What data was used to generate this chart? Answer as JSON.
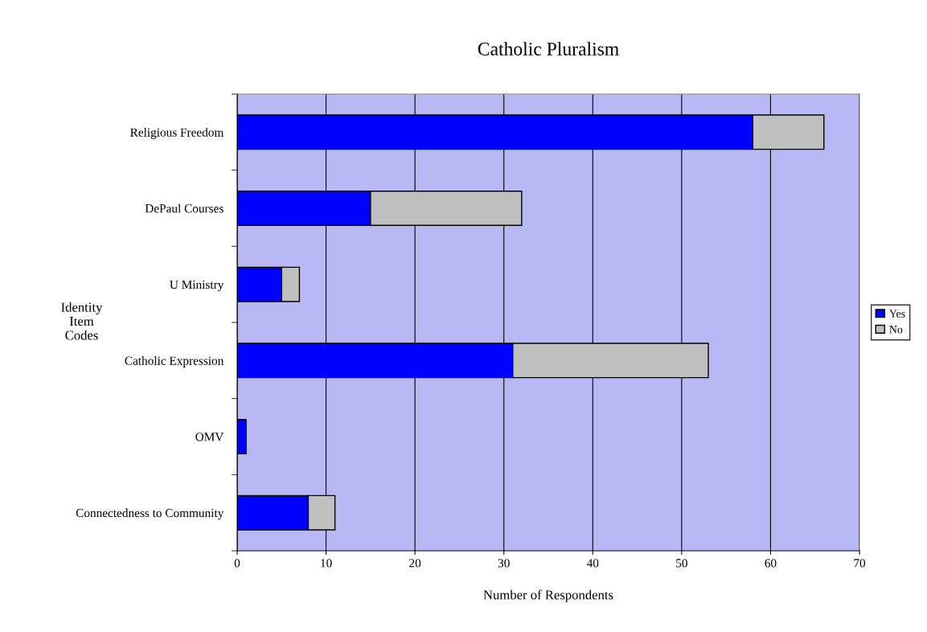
{
  "chart_data": {
    "type": "bar",
    "orientation": "horizontal",
    "stacked": true,
    "title": "Catholic Pluralism",
    "xlabel": "Number of Respondents",
    "ylabel": "Identity\nItem\nCodes",
    "categories": [
      "Religious Freedom",
      "DePaul Courses",
      "U Ministry",
      "Catholic Expression",
      "OMV",
      "Connectedness to Community"
    ],
    "series": [
      {
        "name": "Yes",
        "color": "#0000ff",
        "values": [
          58,
          15,
          5,
          31,
          1,
          8
        ]
      },
      {
        "name": "No",
        "color": "#c0c0c0",
        "values": [
          8,
          17,
          2,
          22,
          null,
          3
        ]
      }
    ],
    "xlim": [
      0,
      70
    ],
    "xticks": [
      0,
      10,
      20,
      30,
      40,
      50,
      60,
      70
    ],
    "grid": "x",
    "legend": "right"
  }
}
